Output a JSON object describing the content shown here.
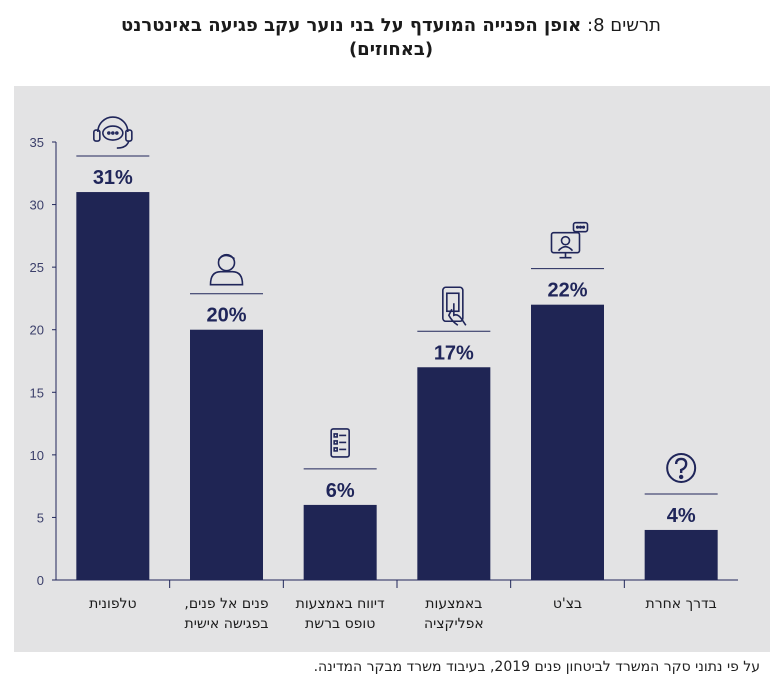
{
  "header": {
    "prefix": "תרשים 8:",
    "title_line1": "אופן הפנייה המועדף על בני נוער עקב פגיעה באינטרנט",
    "title_line2": "(באחוזים)"
  },
  "source": "על פי נתוני סקר המשרד לביטחון פנים 2019, בעיבוד משרד מבקר המדינה.",
  "colors": {
    "bar": "#1f2554",
    "panel": "#e3e3e4",
    "axis": "#20265a"
  },
  "chart_data": {
    "type": "bar",
    "categories": [
      [
        "טלפונית"
      ],
      [
        "פנים אל פנים,",
        "בפגישה אישית"
      ],
      [
        "דיווח באמצעות",
        "טופס ברשת"
      ],
      [
        "באמצעות",
        "אפליקציה"
      ],
      [
        "בצ'ט"
      ],
      [
        "בדרך אחרת"
      ]
    ],
    "values": [
      31,
      20,
      6,
      17,
      22,
      4
    ],
    "data_labels": [
      "31%",
      "20%",
      "6%",
      "17%",
      "22%",
      "4%"
    ],
    "icons": [
      "headset-icon",
      "person-icon",
      "form-icon",
      "phone-app-icon",
      "chat-monitor-icon",
      "question-icon"
    ],
    "ylim": [
      0,
      35
    ],
    "yticks": [
      0,
      5,
      10,
      15,
      20,
      25,
      30,
      35
    ],
    "grid": false
  }
}
